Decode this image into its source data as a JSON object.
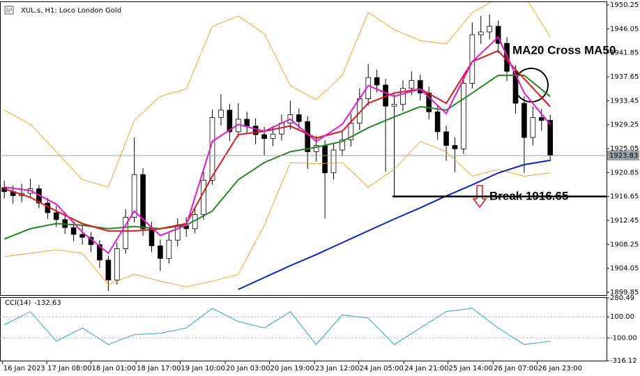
{
  "chart_data": {
    "type": "candlestick",
    "title": "XUL.s, H1: Loco London Gold",
    "ohlc": [
      [
        1918.2,
        1919.4,
        1916.3,
        1917.5
      ],
      [
        1917.5,
        1918.6,
        1915.4,
        1916.8
      ],
      [
        1916.8,
        1918.9,
        1915.6,
        1917.2
      ],
      [
        1917.2,
        1919.8,
        1916.4,
        1918.0
      ],
      [
        1918.0,
        1918.7,
        1914.6,
        1915.5
      ],
      [
        1915.5,
        1916.4,
        1912.7,
        1913.8
      ],
      [
        1913.8,
        1915.0,
        1911.3,
        1912.6
      ],
      [
        1912.6,
        1913.9,
        1910.1,
        1911.2
      ],
      [
        1911.2,
        1912.3,
        1908.8,
        1910.0
      ],
      [
        1910.0,
        1911.6,
        1908.2,
        1909.5
      ],
      [
        1909.5,
        1910.4,
        1906.9,
        1908.2
      ],
      [
        1908.2,
        1909.0,
        1904.1,
        1905.5
      ],
      [
        1905.5,
        1906.3,
        1900.1,
        1902.0
      ],
      [
        1902.0,
        1908.6,
        1901.2,
        1907.5
      ],
      [
        1907.5,
        1914.4,
        1906.6,
        1913.0
      ],
      [
        1913.0,
        1927.0,
        1912.1,
        1920.5
      ],
      [
        1920.5,
        1921.6,
        1909.8,
        1911.0
      ],
      [
        1911.0,
        1912.2,
        1906.9,
        1908.0
      ],
      [
        1908.0,
        1909.1,
        1903.6,
        1905.8
      ],
      [
        1905.8,
        1910.2,
        1904.9,
        1909.0
      ],
      [
        1909.0,
        1912.8,
        1907.9,
        1911.5
      ],
      [
        1911.5,
        1913.0,
        1909.6,
        1911.0
      ],
      [
        1911.0,
        1914.8,
        1910.2,
        1913.5
      ],
      [
        1913.5,
        1921.0,
        1912.6,
        1919.5
      ],
      [
        1919.5,
        1931.9,
        1918.7,
        1930.5
      ],
      [
        1930.5,
        1934.6,
        1929.1,
        1931.8
      ],
      [
        1931.8,
        1932.9,
        1926.4,
        1928.0
      ],
      [
        1928.0,
        1933.0,
        1927.1,
        1930.2
      ],
      [
        1930.2,
        1931.5,
        1927.6,
        1929.0
      ],
      [
        1929.0,
        1930.4,
        1925.8,
        1927.5
      ],
      [
        1927.5,
        1928.9,
        1923.9,
        1926.8
      ],
      [
        1926.8,
        1929.0,
        1925.5,
        1927.6
      ],
      [
        1927.6,
        1931.0,
        1926.5,
        1929.5
      ],
      [
        1929.5,
        1933.4,
        1928.4,
        1931.0
      ],
      [
        1931.0,
        1932.1,
        1928.5,
        1929.8
      ],
      [
        1929.8,
        1930.7,
        1921.5,
        1924.5
      ],
      [
        1924.5,
        1927.2,
        1922.8,
        1925.6
      ],
      [
        1925.6,
        1926.5,
        1912.8,
        1920.8
      ],
      [
        1920.8,
        1926.0,
        1919.6,
        1924.8
      ],
      [
        1924.8,
        1928.1,
        1923.7,
        1926.6
      ],
      [
        1926.6,
        1931.2,
        1925.4,
        1929.5
      ],
      [
        1929.5,
        1935.6,
        1928.3,
        1933.8
      ],
      [
        1933.8,
        1939.9,
        1932.6,
        1937.5
      ],
      [
        1937.5,
        1938.9,
        1934.9,
        1936.2
      ],
      [
        1936.2,
        1937.3,
        1921.0,
        1932.5
      ],
      [
        1932.5,
        1934.6,
        1916.7,
        1932.8
      ],
      [
        1932.8,
        1937.0,
        1931.6,
        1935.6
      ],
      [
        1935.6,
        1938.6,
        1934.4,
        1937.0
      ],
      [
        1937.0,
        1938.0,
        1933.5,
        1934.8
      ],
      [
        1934.8,
        1935.9,
        1930.2,
        1931.5
      ],
      [
        1931.5,
        1932.6,
        1926.6,
        1928.0
      ],
      [
        1928.0,
        1929.1,
        1922.9,
        1925.6
      ],
      [
        1925.6,
        1927.0,
        1920.9,
        1925.0
      ],
      [
        1925.0,
        1938.0,
        1924.1,
        1936.5
      ],
      [
        1936.5,
        1947.2,
        1935.6,
        1945.0
      ],
      [
        1945.0,
        1948.3,
        1943.4,
        1945.5
      ],
      [
        1945.5,
        1948.6,
        1944.2,
        1946.5
      ],
      [
        1946.5,
        1947.5,
        1941.8,
        1943.5
      ],
      [
        1943.5,
        1944.6,
        1936.9,
        1938.6
      ],
      [
        1938.6,
        1939.7,
        1931.2,
        1933.0
      ],
      [
        1933.0,
        1934.2,
        1920.8,
        1927.0
      ],
      [
        1927.0,
        1932.4,
        1925.6,
        1930.5
      ],
      [
        1930.5,
        1932.0,
        1928.2,
        1930.0
      ],
      [
        1930.0,
        1931.0,
        1922.9,
        1923.83
      ]
    ],
    "xlim": [
      -0.5,
      69.5
    ],
    "xticks": [
      {
        "value": -0.2,
        "label": "16 Jan 2023"
      },
      {
        "value": 4.9,
        "label": "17 Jan 08:00"
      },
      {
        "value": 10,
        "label": "18 Jan 01:00"
      },
      {
        "value": 15.2,
        "label": "18 Jan 17:00"
      },
      {
        "value": 20.3,
        "label": "19 Jan 10:00"
      },
      {
        "value": 25.5,
        "label": "20 Jan 03:00"
      },
      {
        "value": 30.6,
        "label": "20 Jan 19:00"
      },
      {
        "value": 35.8,
        "label": "23 Jan 12:00"
      },
      {
        "value": 40.9,
        "label": "24 Jan 05:00"
      },
      {
        "value": 46.1,
        "label": "24 Jan 21:00"
      },
      {
        "value": 51.2,
        "label": "25 Jan 14:00"
      },
      {
        "value": 56.4,
        "label": "26 Jan 07:00"
      },
      {
        "value": 61.5,
        "label": "26 Jan 23:00"
      }
    ],
    "ylim": [
      1899.36,
      1950.74
    ],
    "yticks": [
      1950.25,
      1946.05,
      1941.85,
      1937.65,
      1933.45,
      1929.25,
      1925.05,
      1920.85,
      1916.65,
      1912.45,
      1908.25,
      1904.05,
      1899.85
    ],
    "line_x": [
      0,
      3,
      6,
      9,
      12,
      15,
      18,
      21,
      24,
      27,
      30,
      33,
      36,
      39,
      42,
      45,
      48,
      51,
      54,
      57,
      60,
      63
    ],
    "series": [
      {
        "color": "#f5a623",
        "values": [
          1931.8,
          1929.3,
          1924.5,
          1919.6,
          1918.3,
          1930.0,
          1934.2,
          1935.5,
          1946.5,
          1948.3,
          1945.2,
          1936.1,
          1933.6,
          1937.9,
          1948.9,
          1945.9,
          1944.0,
          1943.4,
          1948.9,
          1951.4,
          1952.0,
          1944.6
        ]
      },
      {
        "color": "#f5a623",
        "values": [
          1906.1,
          1906.7,
          1907.3,
          1906.7,
          1901.2,
          1903.0,
          1901.8,
          1900.8,
          1901.8,
          1903.0,
          1911.6,
          1922.6,
          1922.4,
          1922.6,
          1918.3,
          1921.4,
          1926.3,
          1924.5,
          1920.2,
          1921.4,
          1920.2,
          1920.8
        ]
      },
      {
        "color": "#0a1fd1",
        "values": [
          null,
          null,
          null,
          null,
          null,
          null,
          null,
          null,
          null,
          1900.35,
          1902.43,
          1904.51,
          1906.47,
          1908.55,
          1910.63,
          1912.7,
          1914.66,
          1916.74,
          1918.7,
          1920.78,
          1922.24,
          1922.98
        ]
      },
      {
        "color": "#1f8a1f",
        "values": [
          1909.2,
          1911.0,
          1911.9,
          1911.6,
          1911.0,
          1911.4,
          1911.0,
          1911.6,
          1914.1,
          1919.6,
          1922.6,
          1924.5,
          1925.3,
          1926.3,
          1928.7,
          1930.6,
          1932.4,
          1931.8,
          1934.8,
          1937.9,
          1937.9,
          1934.2
        ]
      },
      {
        "color": "#e3131b",
        "values": [
          1918.0,
          1916.5,
          1914.1,
          1911.9,
          1910.6,
          1910.6,
          1911.0,
          1911.9,
          1920.2,
          1927.5,
          1928.1,
          1929.0,
          1926.9,
          1928.1,
          1933.0,
          1934.8,
          1935.5,
          1933.0,
          1940.3,
          1942.2,
          1937.3,
          1932.4
        ]
      },
      {
        "color": "#e617c8",
        "values": [
          1918.3,
          1917.7,
          1915.3,
          1910.4,
          1906.7,
          1914.1,
          1909.8,
          1911.6,
          1926.3,
          1929.3,
          1928.1,
          1930.2,
          1926.3,
          1929.3,
          1936.1,
          1934.2,
          1935.5,
          1931.2,
          1940.3,
          1944.6,
          1934.8,
          1929.3
        ]
      }
    ],
    "cci": {
      "name": "CCI(14)",
      "color": "#2aa6bf",
      "values": [
        25,
        150,
        -131,
        -6,
        -162,
        -69,
        -56,
        -6,
        181,
        56,
        -6,
        150,
        -162,
        119,
        88,
        -162,
        -6,
        150,
        181,
        -6,
        -162,
        -132.63
      ],
      "ylim": [
        -316.12,
        280.49
      ],
      "yticks": [
        280.49,
        {
          "value": 100,
          "label": "100.00"
        },
        {
          "value": -100,
          "label": "-100.00"
        },
        -316.12
      ]
    },
    "annotations": [
      {
        "text": "MA20 Cross MA50"
      },
      {
        "text": "Break 1916.65",
        "value": 1916.65
      }
    ]
  }
}
